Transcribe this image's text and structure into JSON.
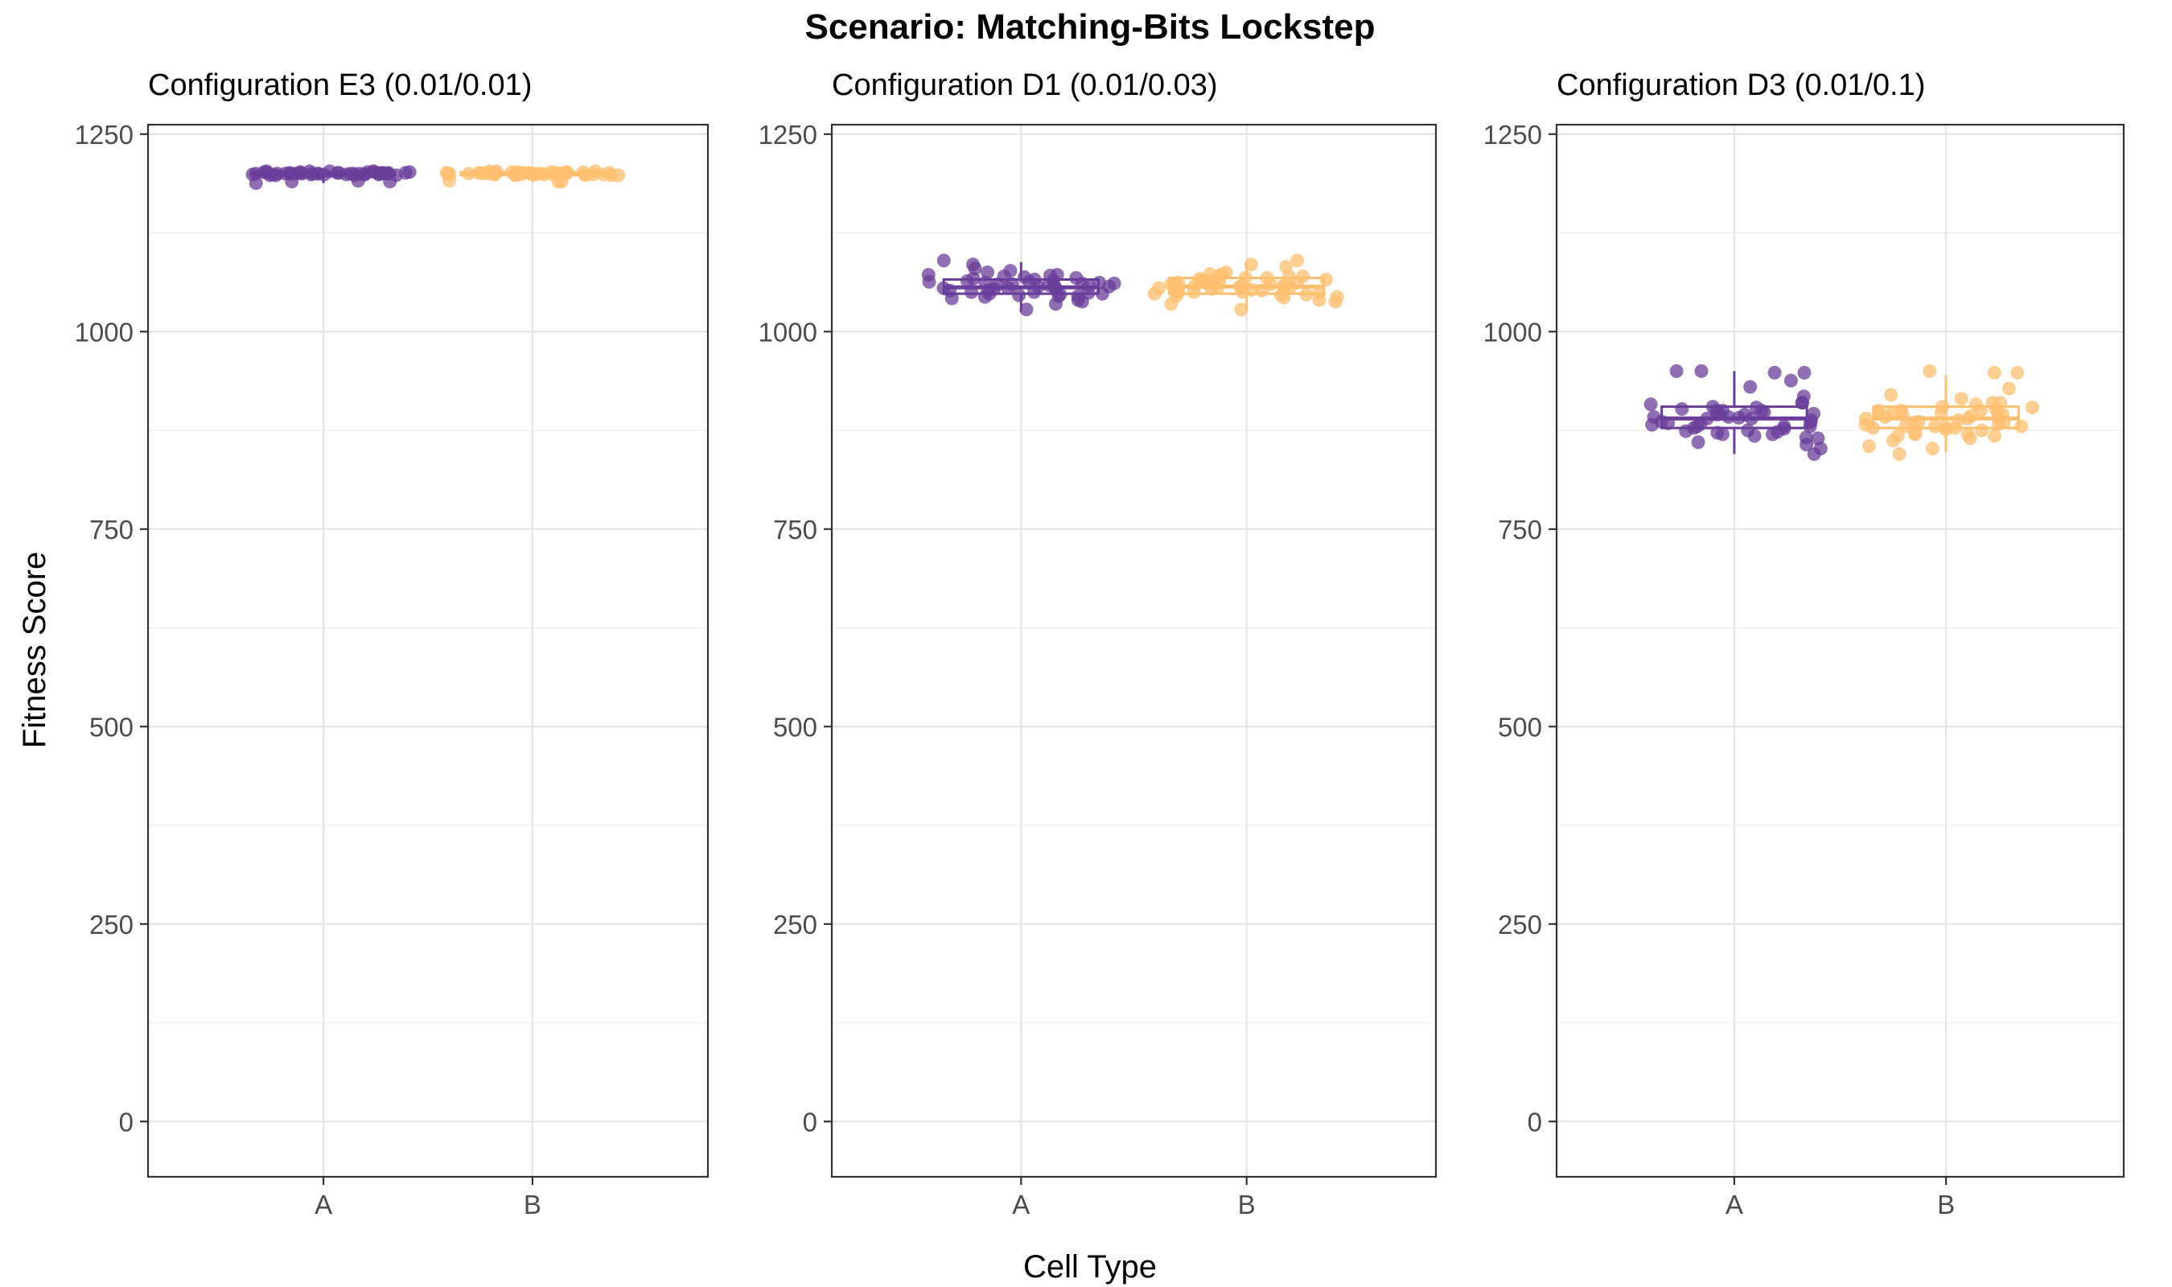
{
  "chart_data": {
    "type": "scatter",
    "subtype": "boxplot-with-jitter",
    "title": "Scenario: Matching-Bits Lockstep",
    "xlabel": "Cell Type",
    "ylabel": "Fitness Score",
    "ylim": [
      -70,
      1262
    ],
    "yticks": [
      0,
      250,
      500,
      750,
      1000,
      1250
    ],
    "categories": [
      "A",
      "B"
    ],
    "grid": true,
    "legend": "none",
    "colors": {
      "A": "#6a3d9a",
      "B": "#fdbf6f"
    },
    "panels": [
      {
        "label": "Configuration E3 (0.01/0.01)",
        "series": [
          {
            "category": "A",
            "box": {
              "min": 1188,
              "q1": 1198,
              "median": 1200,
              "q3": 1202,
              "max": 1205
            },
            "points": [
              1200,
              1201,
              1199,
              1202,
              1198,
              1200,
              1203,
              1190,
              1200,
              1201,
              1199,
              1200,
              1202,
              1198,
              1201,
              1200,
              1199,
              1203,
              1200,
              1201,
              1188,
              1200,
              1199,
              1202,
              1200,
              1201,
              1198,
              1200,
              1203,
              1199,
              1200,
              1201,
              1202,
              1190,
              1200,
              1199,
              1201,
              1200,
              1202,
              1198,
              1200,
              1201,
              1199,
              1200,
              1203,
              1200,
              1191,
              1200,
              1201,
              1199
            ]
          },
          {
            "category": "B",
            "box": {
              "min": 1190,
              "q1": 1198,
              "median": 1200,
              "q3": 1202,
              "max": 1204
            },
            "points": [
              1200,
              1199,
              1201,
              1200,
              1202,
              1198,
              1200,
              1201,
              1199,
              1200,
              1203,
              1200,
              1190,
              1201,
              1200,
              1199,
              1202,
              1200,
              1198,
              1201,
              1200,
              1199,
              1200,
              1202,
              1191,
              1200,
              1201,
              1199,
              1200,
              1203,
              1200,
              1198,
              1201,
              1200,
              1199,
              1202,
              1200,
              1201,
              1190,
              1200,
              1199,
              1201,
              1200,
              1202,
              1198,
              1200,
              1201,
              1199,
              1200,
              1203
            ]
          }
        ]
      },
      {
        "label": "Configuration D1 (0.01/0.03)",
        "series": [
          {
            "category": "A",
            "box": {
              "min": 1025,
              "q1": 1048,
              "median": 1056,
              "q3": 1066,
              "max": 1088
            },
            "points": [
              1066,
              1072,
              1055,
              1048,
              1090,
              1085,
              1060,
              1045,
              1062,
              1058,
              1050,
              1040,
              1070,
              1055,
              1063,
              1052,
              1047,
              1038,
              1068,
              1061,
              1057,
              1049,
              1044,
              1072,
              1080,
              1028,
              1059,
              1053,
              1065,
              1046,
              1071,
              1062,
              1056,
              1042,
              1050,
              1064,
              1058,
              1077,
              1075,
              1035,
              1054,
              1060,
              1067,
              1048,
              1052,
              1063,
              1057,
              1045,
              1069,
              1061
            ]
          },
          {
            "category": "B",
            "box": {
              "min": 1028,
              "q1": 1048,
              "median": 1057,
              "q3": 1068,
              "max": 1088
            },
            "points": [
              1070,
              1065,
              1058,
              1050,
              1062,
              1040,
              1055,
              1048,
              1068,
              1075,
              1035,
              1052,
              1060,
              1045,
              1090,
              1082,
              1057,
              1063,
              1050,
              1028,
              1066,
              1054,
              1060,
              1049,
              1071,
              1044,
              1059,
              1067,
              1052,
              1038,
              1064,
              1056,
              1073,
              1047,
              1061,
              1085,
              1070,
              1053,
              1058,
              1046,
              1065,
              1050,
              1062,
              1055,
              1049,
              1068,
              1057,
              1072,
              1043,
              1060
            ]
          }
        ]
      },
      {
        "label": "Configuration D3 (0.01/0.1)",
        "series": [
          {
            "category": "A",
            "box": {
              "min": 845,
              "q1": 878,
              "median": 890,
              "q3": 905,
              "max": 950
            },
            "points": [
              875,
              890,
              900,
              870,
              930,
              950,
              885,
              880,
              868,
              895,
              910,
              878,
              892,
              872,
              900,
              888,
              865,
              882,
              896,
              905,
              950,
              948,
              860,
              845,
              870,
              852,
              880,
              892,
              898,
              918,
              883,
              877,
              890,
              904,
              895,
              886,
              857,
              873,
              908,
              900,
              880,
              938,
              948,
              896,
              891,
              910,
              902,
              884,
              874,
              866
            ]
          },
          {
            "category": "B",
            "box": {
              "min": 848,
              "q1": 878,
              "median": 890,
              "q3": 905,
              "max": 945
            },
            "points": [
              890,
              880,
              870,
              928,
              948,
              900,
              875,
              862,
              885,
              895,
              910,
              868,
              892,
              878,
              900,
              886,
              905,
              880,
              855,
              872,
              890,
              948,
              920,
              882,
              895,
              902,
              876,
              865,
              888,
              898,
              910,
              880,
              893,
              870,
              885,
              900,
              915,
              878,
              868,
              852,
              890,
              904,
              896,
              883,
              845,
              898,
              908,
              880,
              950,
              897
            ]
          }
        ]
      }
    ]
  }
}
